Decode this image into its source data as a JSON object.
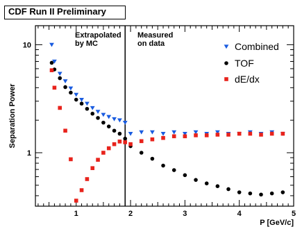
{
  "chart_data": {
    "type": "scatter",
    "banner": "CDF Run II Preliminary",
    "xlabel": "P [GeV/c]",
    "ylabel": "Separation Power",
    "yscale": "log",
    "xlim": [
      0.25,
      5.0
    ],
    "ylim": [
      0.32,
      15
    ],
    "xticks": [
      1,
      2,
      3,
      4,
      5
    ],
    "yticks": [
      1,
      10
    ],
    "divider_x": 1.9,
    "regions": [
      {
        "text": [
          "Extrapolated",
          "by MC"
        ]
      },
      {
        "text": [
          "Measured",
          "on data"
        ]
      }
    ],
    "legend_position": "top-right",
    "series": [
      {
        "name": "Combined",
        "marker": "triangle-down",
        "color": "#1a5ce0",
        "x": [
          0.55,
          0.6,
          0.7,
          0.8,
          0.9,
          1.0,
          1.1,
          1.2,
          1.3,
          1.4,
          1.5,
          1.6,
          1.7,
          1.8,
          1.9,
          2.0,
          2.2,
          2.4,
          2.6,
          2.8,
          3.0,
          3.2,
          3.4,
          3.6,
          3.8,
          4.0,
          4.2,
          4.4,
          4.6,
          4.8
        ],
        "y": [
          10.0,
          7.0,
          5.4,
          4.6,
          3.95,
          3.45,
          3.1,
          2.85,
          2.6,
          2.4,
          2.25,
          2.15,
          2.05,
          2.0,
          1.9,
          1.5,
          1.55,
          1.55,
          1.5,
          1.55,
          1.5,
          1.55,
          1.5,
          1.55,
          1.5,
          1.5,
          1.55,
          1.5,
          1.55,
          1.5
        ]
      },
      {
        "name": "TOF",
        "marker": "circle",
        "color": "#000000",
        "x": [
          0.55,
          0.6,
          0.7,
          0.8,
          0.9,
          1.0,
          1.1,
          1.2,
          1.3,
          1.4,
          1.5,
          1.6,
          1.7,
          1.8,
          1.9,
          2.0,
          2.2,
          2.4,
          2.6,
          2.8,
          3.0,
          3.2,
          3.4,
          3.6,
          3.8,
          4.0,
          4.2,
          4.4,
          4.6,
          4.8
        ],
        "y": [
          6.8,
          5.9,
          4.9,
          4.05,
          3.6,
          3.1,
          2.85,
          2.55,
          2.3,
          2.1,
          1.9,
          1.75,
          1.6,
          1.5,
          1.35,
          1.15,
          1.0,
          0.88,
          0.76,
          0.69,
          0.62,
          0.56,
          0.52,
          0.49,
          0.46,
          0.43,
          0.42,
          0.41,
          0.42,
          0.43
        ]
      },
      {
        "name": "dE/dx",
        "marker": "square",
        "color": "#e8231c",
        "x": [
          0.55,
          0.6,
          0.7,
          0.8,
          0.9,
          1.0,
          1.1,
          1.2,
          1.3,
          1.4,
          1.5,
          1.6,
          1.7,
          1.8,
          1.9,
          2.0,
          2.2,
          2.4,
          2.6,
          2.8,
          3.0,
          3.2,
          3.4,
          3.6,
          3.8,
          4.0,
          4.2,
          4.4,
          4.6,
          4.8
        ],
        "y": [
          5.8,
          4.0,
          2.6,
          1.6,
          0.87,
          0.36,
          0.45,
          0.57,
          0.72,
          0.86,
          1.0,
          1.1,
          1.2,
          1.27,
          1.25,
          1.2,
          1.28,
          1.33,
          1.37,
          1.42,
          1.42,
          1.45,
          1.45,
          1.47,
          1.47,
          1.5,
          1.5,
          1.47,
          1.5,
          1.5
        ]
      }
    ]
  }
}
